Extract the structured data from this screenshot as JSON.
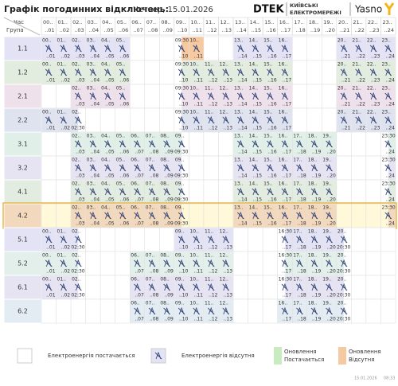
{
  "header": {
    "title": "Графік погодинних відключень:",
    "date": "Четвер, 15.01.2026",
    "logo": {
      "brand": "DTEK",
      "line1": "КИЇВСЬКІ",
      "line2": "ЕЛЕКТРОМЕРЕЖІ",
      "partner": "Yasno"
    }
  },
  "table": {
    "time_label": "Час",
    "group_label": "Група",
    "hours": [
      {
        "from": "00..",
        "to": "..01"
      },
      {
        "from": "01..",
        "to": "..02"
      },
      {
        "from": "02..",
        "to": "..03"
      },
      {
        "from": "03..",
        "to": "..04"
      },
      {
        "from": "04..",
        "to": "..05"
      },
      {
        "from": "05..",
        "to": "..06"
      },
      {
        "from": "06..",
        "to": "..07"
      },
      {
        "from": "07..",
        "to": "..08"
      },
      {
        "from": "08..",
        "to": "..09"
      },
      {
        "from": "09..",
        "to": "..10"
      },
      {
        "from": "10..",
        "to": "..11"
      },
      {
        "from": "11..",
        "to": "..12"
      },
      {
        "from": "12..",
        "to": "..13"
      },
      {
        "from": "13..",
        "to": "..14"
      },
      {
        "from": "14..",
        "to": "..15"
      },
      {
        "from": "15..",
        "to": "..16"
      },
      {
        "from": "16..",
        "to": "..17"
      },
      {
        "from": "17..",
        "to": "..18"
      },
      {
        "from": "18..",
        "to": "..19"
      },
      {
        "from": "19..",
        "to": "..20"
      },
      {
        "from": "20..",
        "to": "..21"
      },
      {
        "from": "21..",
        "to": "..22"
      },
      {
        "from": "22..",
        "to": "..23"
      },
      {
        "from": "23..",
        "to": "..24"
      }
    ],
    "rows": [
      {
        "group": "1.1",
        "color": "#e3e3f5",
        "updated": [
          9,
          10
        ],
        "cells": [
          1,
          1,
          1,
          1,
          1,
          1,
          0,
          0,
          0,
          "09:30",
          1,
          0,
          0,
          1,
          1,
          1,
          1,
          0,
          0,
          0,
          1,
          1,
          1,
          1
        ]
      },
      {
        "group": "1.2",
        "color": "#e2ecdf",
        "cells": [
          1,
          1,
          1,
          1,
          1,
          1,
          0,
          0,
          0,
          "09:30",
          1,
          1,
          1,
          1,
          1,
          1,
          1,
          0,
          0,
          0,
          1,
          1,
          1,
          1
        ]
      },
      {
        "group": "2.1",
        "color": "#efe1ec",
        "cells": [
          0,
          0,
          1,
          1,
          1,
          1,
          0,
          0,
          0,
          "09:30",
          1,
          1,
          1,
          1,
          1,
          1,
          1,
          0,
          0,
          0,
          1,
          1,
          1,
          1
        ]
      },
      {
        "group": "2.2",
        "color": "#dfe3f0",
        "cells": [
          1,
          1,
          "02:30",
          0,
          0,
          0,
          0,
          0,
          0,
          "09:30",
          1,
          1,
          1,
          1,
          1,
          1,
          1,
          0,
          0,
          0,
          1,
          1,
          1,
          1
        ]
      },
      {
        "group": "3.1",
        "color": "#e1efe9",
        "cells": [
          0,
          0,
          1,
          1,
          1,
          1,
          1,
          1,
          1,
          "09:30",
          0,
          0,
          0,
          1,
          1,
          1,
          1,
          1,
          1,
          1,
          0,
          0,
          0,
          "23:30"
        ]
      },
      {
        "group": "3.2",
        "color": "#e6e4f3",
        "cells": [
          0,
          0,
          1,
          1,
          1,
          1,
          1,
          1,
          1,
          "09:30",
          0,
          0,
          0,
          1,
          1,
          1,
          1,
          1,
          1,
          1,
          0,
          0,
          0,
          "23:30"
        ]
      },
      {
        "group": "4.1",
        "color": "#e2ece0",
        "cells": [
          0,
          0,
          1,
          1,
          1,
          1,
          1,
          1,
          1,
          "09:30",
          0,
          0,
          0,
          1,
          1,
          1,
          1,
          1,
          1,
          1,
          0,
          0,
          0,
          "23:30"
        ]
      },
      {
        "group": "4.2",
        "color": "#f2d8bc",
        "highlight": true,
        "cells": [
          0,
          0,
          1,
          1,
          1,
          1,
          1,
          1,
          1,
          "09:30",
          0,
          0,
          0,
          1,
          1,
          1,
          1,
          1,
          1,
          1,
          0,
          0,
          0,
          "23:30"
        ]
      },
      {
        "group": "5.1",
        "color": "#e3e3f5",
        "cells": [
          1,
          1,
          "02:30",
          0,
          0,
          0,
          0,
          0,
          0,
          1,
          1,
          1,
          1,
          0,
          0,
          0,
          "16:30",
          1,
          1,
          1,
          "20:30",
          0,
          0,
          0
        ]
      },
      {
        "group": "5.2",
        "color": "#e2efea",
        "cells": [
          1,
          1,
          "02:30",
          0,
          0,
          0,
          1,
          1,
          1,
          1,
          1,
          1,
          1,
          0,
          0,
          0,
          "16:30",
          1,
          1,
          1,
          "20:30",
          0,
          0,
          0
        ]
      },
      {
        "group": "6.1",
        "color": "#e6e4f3",
        "cells": [
          1,
          1,
          "02:30",
          0,
          0,
          0,
          1,
          1,
          1,
          1,
          1,
          1,
          1,
          0,
          0,
          0,
          "16:30",
          1,
          1,
          1,
          "20:30",
          0,
          0,
          0
        ]
      },
      {
        "group": "6.2",
        "color": "#e3ecf3",
        "cells": [
          0,
          0,
          0,
          0,
          0,
          0,
          1,
          1,
          1,
          1,
          1,
          1,
          1,
          0,
          0,
          0,
          1,
          1,
          1,
          1,
          "20:30",
          0,
          0,
          0
        ]
      }
    ]
  },
  "legend": {
    "on": "Електроенергія постачається",
    "off": "Електроенергія відсутня",
    "upd_on_1": "Оновлення",
    "upd_on_2": "Постачається",
    "upd_off_1": "Оновлення",
    "upd_off_2": "Відсутня"
  },
  "footer": {
    "stamp": "15.01.2026",
    "time": "08:33"
  }
}
